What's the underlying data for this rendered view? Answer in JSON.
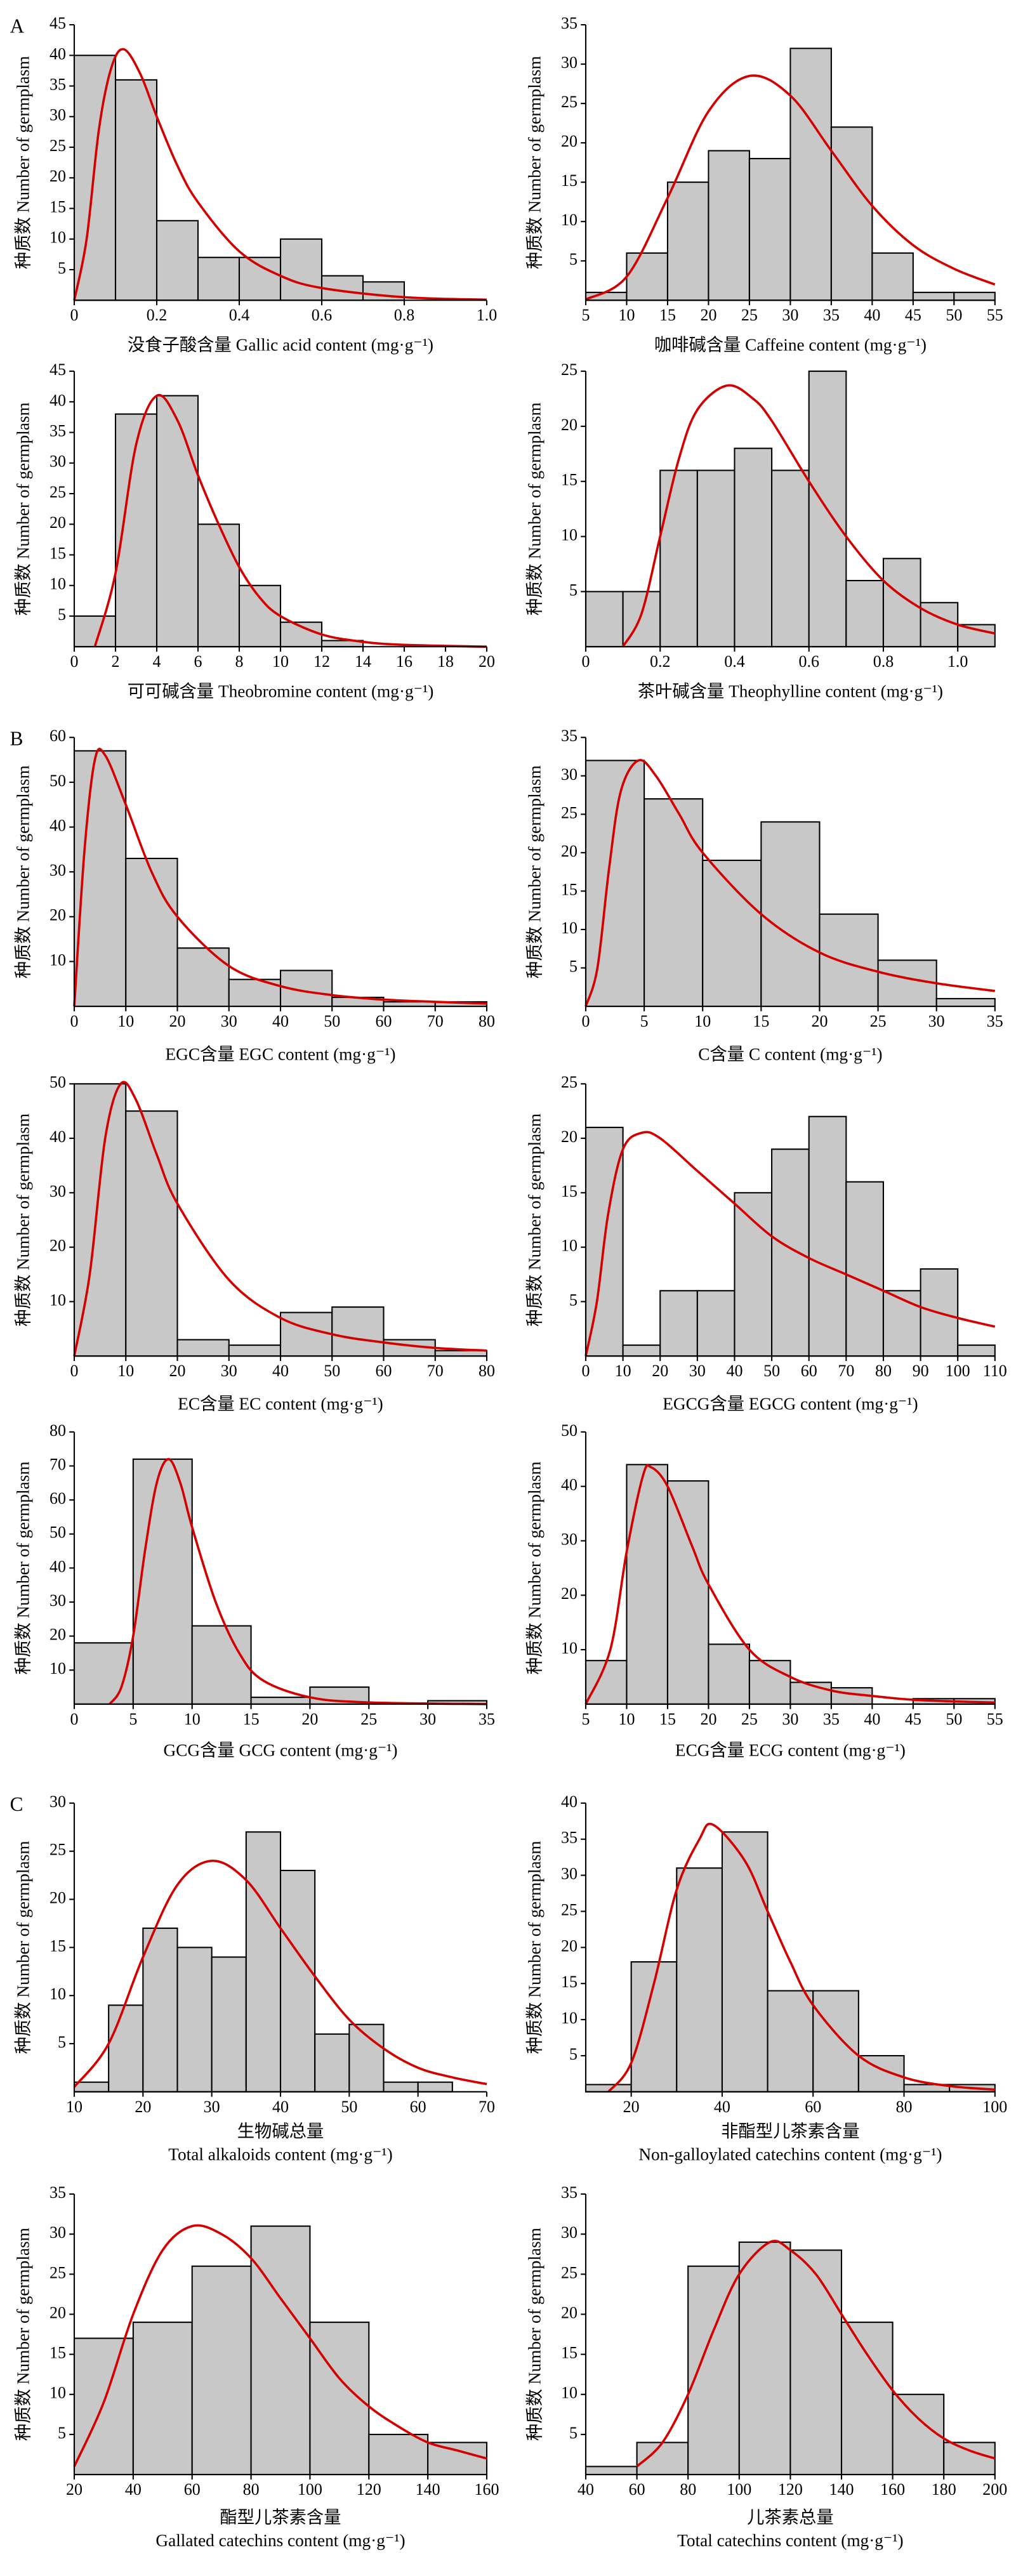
{
  "chart_data": [
    {
      "type": "histogram",
      "panel": "A",
      "xlabel": [
        "没食子酸含量 Gallic acid content (mg·g⁻¹)"
      ],
      "ylabel": "种质数 Number of germplasm",
      "bins": [
        0,
        0.1,
        0.2,
        0.3,
        0.4,
        0.5,
        0.6,
        0.7,
        0.8
      ],
      "counts": [
        40,
        36,
        13,
        7,
        7,
        10,
        4,
        3
      ],
      "xlim": [
        0,
        1
      ],
      "xticks": [
        0,
        0.2,
        0.4,
        0.6,
        0.8,
        {
          "value": 1,
          "label": "1.0"
        }
      ],
      "ylim": [
        0,
        45
      ],
      "yticks": [
        5,
        10,
        15,
        20,
        25,
        30,
        35,
        40,
        45
      ],
      "curve": {
        "x": [
          0,
          0.03,
          0.06,
          0.09,
          0.12,
          0.16,
          0.2,
          0.25,
          0.3,
          0.4,
          0.5,
          0.6,
          0.8,
          1
        ],
        "y": [
          0,
          10,
          28,
          38,
          41,
          37,
          30,
          22,
          16,
          8,
          4,
          2,
          0.5,
          0.1
        ]
      },
      "color": "#c8c8c8",
      "curve_color": "#d40000"
    },
    {
      "type": "histogram",
      "xlabel": [
        "咖啡碱含量 Caffeine content (mg·g⁻¹)"
      ],
      "ylabel": "种质数 Number of germplasm",
      "bins": [
        5,
        10,
        15,
        20,
        25,
        30,
        35,
        40,
        45,
        50,
        55
      ],
      "counts": [
        1,
        6,
        15,
        19,
        18,
        32,
        22,
        6,
        1,
        1
      ],
      "xlim": [
        5,
        55
      ],
      "xticks": [
        5,
        10,
        15,
        20,
        25,
        30,
        35,
        40,
        45,
        50,
        55
      ],
      "ylim": [
        0,
        35
      ],
      "yticks": [
        5,
        10,
        15,
        20,
        25,
        30,
        35
      ],
      "curve": {
        "x": [
          5,
          10,
          15,
          20,
          25,
          30,
          35,
          40,
          45,
          50,
          55
        ],
        "y": [
          0.1,
          3,
          13,
          24,
          28.5,
          26,
          19,
          12,
          7,
          4,
          2
        ]
      },
      "color": "#c8c8c8",
      "curve_color": "#d40000"
    },
    {
      "type": "histogram",
      "xlabel": [
        "可可碱含量 Theobromine content (mg·g⁻¹)"
      ],
      "ylabel": "种质数 Number of germplasm",
      "bins": [
        0,
        2,
        4,
        6,
        8,
        10,
        12,
        14
      ],
      "counts": [
        5,
        38,
        41,
        20,
        10,
        4,
        1
      ],
      "xlim": [
        0,
        20
      ],
      "xticks": [
        0,
        2,
        4,
        6,
        8,
        10,
        12,
        14,
        16,
        18,
        20
      ],
      "ylim": [
        0,
        45
      ],
      "yticks": [
        5,
        10,
        15,
        20,
        25,
        30,
        35,
        40,
        45
      ],
      "curve": {
        "x": [
          1,
          2,
          3,
          4,
          5,
          6,
          7,
          8,
          9,
          10,
          12,
          14,
          16,
          20
        ],
        "y": [
          0,
          12,
          33,
          41,
          37,
          28,
          20,
          13,
          8,
          5,
          2,
          0.8,
          0.3,
          0
        ]
      },
      "color": "#c8c8c8",
      "curve_color": "#d40000"
    },
    {
      "type": "histogram",
      "xlabel": [
        "茶叶碱含量 Theophylline content (mg·g⁻¹)"
      ],
      "ylabel": "种质数 Number of germplasm",
      "bins": [
        0,
        0.1,
        0.2,
        0.3,
        0.4,
        0.5,
        0.6,
        0.7,
        0.8,
        0.9,
        1,
        1.1
      ],
      "counts": [
        5,
        5,
        16,
        16,
        18,
        16,
        25,
        6,
        8,
        4,
        2
      ],
      "xlim": [
        0,
        1.1
      ],
      "xticks": [
        0,
        0.2,
        0.4,
        0.6,
        0.8,
        {
          "value": 1,
          "label": "1.0"
        }
      ],
      "ylim": [
        0,
        25
      ],
      "yticks": [
        5,
        10,
        15,
        20,
        25
      ],
      "curve": {
        "x": [
          0.1,
          0.15,
          0.2,
          0.25,
          0.3,
          0.38,
          0.45,
          0.5,
          0.6,
          0.7,
          0.8,
          0.9,
          1,
          1.1
        ],
        "y": [
          0,
          3,
          10,
          17,
          21.5,
          23.7,
          22.5,
          20.5,
          15,
          10,
          6,
          3.5,
          2,
          1.2
        ]
      },
      "color": "#c8c8c8",
      "curve_color": "#d40000"
    },
    {
      "type": "histogram",
      "panel": "B",
      "xlabel": [
        "EGC含量 EGC content (mg·g⁻¹)"
      ],
      "ylabel": "种质数 Number of germplasm",
      "bins": [
        0,
        10,
        20,
        30,
        40,
        50,
        60,
        70,
        80
      ],
      "counts": [
        57,
        33,
        13,
        6,
        8,
        2,
        1,
        1
      ],
      "xlim": [
        0,
        80
      ],
      "xticks": [
        0,
        10,
        20,
        30,
        40,
        50,
        60,
        70,
        80
      ],
      "ylim": [
        0,
        60
      ],
      "yticks": [
        10,
        20,
        30,
        40,
        50,
        60
      ],
      "curve": {
        "x": [
          0,
          2,
          4,
          6,
          10,
          15,
          20,
          30,
          40,
          50,
          60,
          70,
          80
        ],
        "y": [
          0,
          35,
          55,
          56,
          45,
          30,
          20,
          9,
          4.5,
          2.5,
          1.5,
          1,
          0.6
        ]
      },
      "color": "#c8c8c8",
      "curve_color": "#d40000"
    },
    {
      "type": "histogram",
      "xlabel": [
        "C含量 C content (mg·g⁻¹)"
      ],
      "ylabel": "种质数 Number of germplasm",
      "bins": [
        0,
        5,
        10,
        15,
        20,
        25,
        30,
        35
      ],
      "counts": [
        32,
        27,
        19,
        24,
        12,
        6,
        1
      ],
      "xlim": [
        0,
        35
      ],
      "xticks": [
        0,
        5,
        10,
        15,
        20,
        25,
        30,
        35
      ],
      "ylim": [
        0,
        35
      ],
      "yticks": [
        5,
        10,
        15,
        20,
        25,
        30,
        35
      ],
      "curve": {
        "x": [
          0,
          1,
          2,
          3,
          4.5,
          6,
          8,
          10,
          15,
          20,
          25,
          30,
          35
        ],
        "y": [
          0,
          5,
          18,
          28,
          32,
          30,
          25,
          20,
          12,
          7,
          4.5,
          3,
          2
        ]
      },
      "color": "#c8c8c8",
      "curve_color": "#d40000"
    },
    {
      "type": "histogram",
      "xlabel": [
        "EC含量 EC content (mg·g⁻¹)"
      ],
      "ylabel": "种质数 Number of germplasm",
      "bins": [
        0,
        10,
        20,
        30,
        40,
        50,
        60,
        70,
        80
      ],
      "counts": [
        50,
        45,
        3,
        2,
        8,
        9,
        3,
        1
      ],
      "xlim": [
        0,
        80
      ],
      "xticks": [
        0,
        10,
        20,
        30,
        40,
        50,
        60,
        70,
        80
      ],
      "ylim": [
        0,
        50
      ],
      "yticks": [
        10,
        20,
        30,
        40,
        50
      ],
      "curve": {
        "x": [
          0,
          3,
          6,
          9,
          12,
          16,
          20,
          30,
          40,
          50,
          60,
          70,
          80
        ],
        "y": [
          0,
          15,
          40,
          50,
          47,
          37,
          28,
          14,
          7,
          4,
          2.5,
          1.5,
          1
        ]
      },
      "color": "#c8c8c8",
      "curve_color": "#d40000"
    },
    {
      "type": "histogram",
      "xlabel": [
        "EGCG含量 EGCG content (mg·g⁻¹)"
      ],
      "ylabel": "种质数 Number of germplasm",
      "bins": [
        0,
        10,
        20,
        30,
        40,
        50,
        60,
        70,
        80,
        90,
        100,
        110
      ],
      "counts": [
        21,
        1,
        6,
        6,
        15,
        19,
        22,
        16,
        6,
        8,
        1
      ],
      "xlim": [
        0,
        110
      ],
      "xticks": [
        0,
        10,
        20,
        30,
        40,
        50,
        60,
        70,
        80,
        90,
        100,
        110
      ],
      "ylim": [
        0,
        25
      ],
      "yticks": [
        5,
        10,
        15,
        20,
        25
      ],
      "curve": {
        "x": [
          0,
          3,
          6,
          10,
          15,
          20,
          30,
          40,
          50,
          60,
          70,
          80,
          90,
          100,
          110
        ],
        "y": [
          0,
          5,
          13,
          19,
          20.5,
          20,
          17,
          14,
          11,
          9,
          7.5,
          6,
          4.5,
          3.5,
          2.7
        ]
      },
      "color": "#c8c8c8",
      "curve_color": "#d40000"
    },
    {
      "type": "histogram",
      "xlabel": [
        "GCG含量 GCG content (mg·g⁻¹)"
      ],
      "ylabel": "种质数 Number of germplasm",
      "bins": [
        0,
        5,
        10,
        15,
        20,
        25,
        30,
        35
      ],
      "counts": [
        18,
        72,
        23,
        2,
        5,
        0,
        1
      ],
      "xlim": [
        0,
        35
      ],
      "xticks": [
        0,
        5,
        10,
        15,
        20,
        25,
        30,
        35
      ],
      "ylim": [
        0,
        80
      ],
      "yticks": [
        10,
        20,
        30,
        40,
        50,
        60,
        70,
        80
      ],
      "curve": {
        "x": [
          3,
          4,
          5,
          6,
          7,
          8,
          9,
          10,
          12,
          14,
          16,
          20,
          25,
          35
        ],
        "y": [
          0,
          5,
          20,
          45,
          65,
          72,
          65,
          52,
          30,
          15,
          7,
          2,
          0.5,
          0
        ]
      },
      "color": "#c8c8c8",
      "curve_color": "#d40000"
    },
    {
      "type": "histogram",
      "xlabel": [
        "ECG含量 ECG content (mg·g⁻¹)"
      ],
      "ylabel": "种质数 Number of germplasm",
      "bins": [
        5,
        10,
        15,
        20,
        25,
        30,
        35,
        40,
        45,
        50,
        55
      ],
      "counts": [
        8,
        44,
        41,
        11,
        8,
        4,
        3,
        0,
        1,
        1
      ],
      "xlim": [
        5,
        55
      ],
      "xticks": [
        5,
        10,
        15,
        20,
        25,
        30,
        35,
        40,
        45,
        50,
        55
      ],
      "ylim": [
        0,
        50
      ],
      "yticks": [
        10,
        20,
        30,
        40,
        50
      ],
      "curve": {
        "x": [
          5,
          8,
          10,
          12,
          13,
          15,
          18,
          20,
          25,
          30,
          35,
          40,
          45,
          50,
          55
        ],
        "y": [
          0,
          10,
          28,
          42,
          43.5,
          40,
          29,
          22,
          10,
          5,
          2.5,
          1.5,
          0.8,
          0.5,
          0.3
        ]
      },
      "color": "#c8c8c8",
      "curve_color": "#d40000"
    },
    {
      "type": "histogram",
      "panel": "C",
      "xlabel": [
        "生物碱总量",
        "Total alkaloids content (mg·g⁻¹)"
      ],
      "ylabel": "种质数 Number of germplasm",
      "bins": [
        10,
        15,
        20,
        25,
        30,
        35,
        40,
        45,
        50,
        55,
        60,
        65
      ],
      "counts": [
        1,
        9,
        17,
        15,
        14,
        27,
        23,
        6,
        7,
        1,
        1
      ],
      "xlim": [
        10,
        70
      ],
      "xticks": [
        10,
        20,
        30,
        40,
        50,
        60,
        70
      ],
      "ylim": [
        0,
        30
      ],
      "yticks": [
        5,
        10,
        15,
        20,
        25,
        30
      ],
      "curve": {
        "x": [
          10,
          15,
          20,
          25,
          30,
          35,
          40,
          45,
          50,
          55,
          60,
          65,
          70
        ],
        "y": [
          0.5,
          5,
          14,
          21.5,
          24,
          22,
          17,
          12,
          7.5,
          4.5,
          2.5,
          1.5,
          0.8
        ]
      },
      "color": "#c8c8c8",
      "curve_color": "#d40000"
    },
    {
      "type": "histogram",
      "xlabel": [
        "非酯型儿茶素含量",
        "Non-galloylated catechins content (mg·g⁻¹)"
      ],
      "ylabel": "种质数 Number of germplasm",
      "bins": [
        10,
        20,
        30,
        40,
        50,
        60,
        70,
        80,
        90,
        100
      ],
      "counts": [
        1,
        18,
        31,
        36,
        14,
        14,
        5,
        1,
        1
      ],
      "xlim": [
        10,
        100
      ],
      "xticks": [
        20,
        40,
        60,
        80,
        100
      ],
      "ylim": [
        0,
        40
      ],
      "yticks": [
        5,
        10,
        15,
        20,
        25,
        30,
        35,
        40
      ],
      "curve": {
        "x": [
          15,
          20,
          25,
          30,
          35,
          38,
          45,
          50,
          55,
          60,
          70,
          80,
          90,
          100
        ],
        "y": [
          0,
          4,
          15,
          28,
          35,
          37,
          32,
          25,
          18,
          12,
          5,
          2,
          0.8,
          0.3
        ]
      },
      "color": "#c8c8c8",
      "curve_color": "#d40000"
    },
    {
      "type": "histogram",
      "xlabel": [
        "酯型儿茶素含量",
        "Gallated catechins content (mg·g⁻¹)"
      ],
      "ylabel": "种质数 Number of germplasm",
      "bins": [
        20,
        40,
        60,
        80,
        100,
        120,
        140,
        160
      ],
      "counts": [
        17,
        19,
        26,
        31,
        19,
        5,
        4
      ],
      "xlim": [
        20,
        160
      ],
      "xticks": [
        20,
        40,
        60,
        80,
        100,
        120,
        140,
        160
      ],
      "ylim": [
        0,
        35
      ],
      "yticks": [
        5,
        10,
        15,
        20,
        25,
        30,
        35
      ],
      "curve": {
        "x": [
          20,
          30,
          40,
          50,
          60,
          70,
          80,
          90,
          100,
          110,
          120,
          130,
          140,
          150,
          160
        ],
        "y": [
          1,
          9,
          20,
          28,
          31,
          30,
          27,
          22,
          17,
          12,
          8.5,
          6,
          4,
          3,
          2
        ]
      },
      "color": "#c8c8c8",
      "curve_color": "#d40000"
    },
    {
      "type": "histogram",
      "xlabel": [
        "儿茶素总量",
        "Total catechins content (mg·g⁻¹)"
      ],
      "ylabel": "种质数 Number of germplasm",
      "bins": [
        40,
        60,
        80,
        100,
        120,
        140,
        160,
        180,
        200
      ],
      "counts": [
        1,
        4,
        26,
        29,
        28,
        19,
        10,
        4
      ],
      "xlim": [
        40,
        200
      ],
      "xticks": [
        40,
        60,
        80,
        100,
        120,
        140,
        160,
        180,
        200
      ],
      "ylim": [
        0,
        35
      ],
      "yticks": [
        5,
        10,
        15,
        20,
        25,
        30,
        35
      ],
      "curve": {
        "x": [
          60,
          70,
          80,
          90,
          100,
          112,
          120,
          130,
          140,
          150,
          160,
          170,
          180,
          190,
          200
        ],
        "y": [
          1,
          4,
          10,
          18,
          25,
          29,
          28,
          25,
          20,
          15,
          10.5,
          7,
          4.5,
          3,
          2
        ]
      },
      "color": "#c8c8c8",
      "curve_color": "#d40000"
    }
  ]
}
